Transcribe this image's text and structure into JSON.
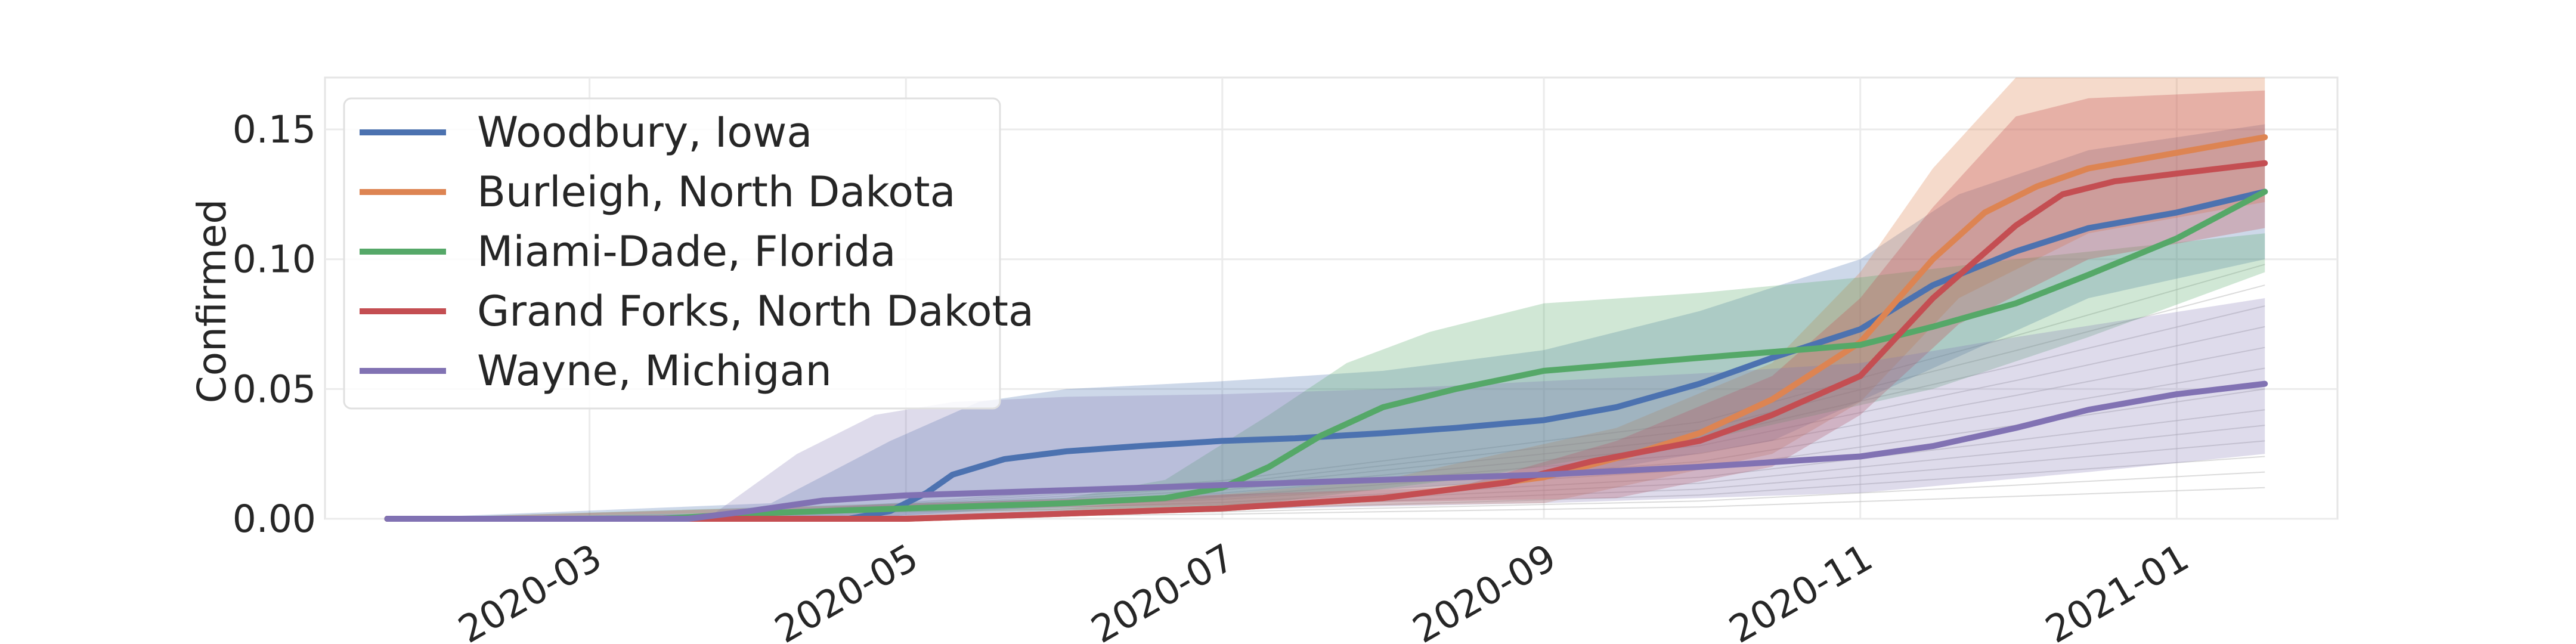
{
  "chart_data": {
    "type": "line",
    "title": "",
    "xlabel": "",
    "ylabel": "Confirmed",
    "xlim": [
      "2020-01-10",
      "2021-02-01"
    ],
    "ylim": [
      0,
      0.17
    ],
    "x_ticks": [
      "2020-03",
      "2020-05",
      "2020-07",
      "2020-09",
      "2020-11",
      "2021-01"
    ],
    "y_ticks": [
      "0.00",
      "0.05",
      "0.10",
      "0.15"
    ],
    "grid": true,
    "legend_position": "upper-left",
    "colors": {
      "blue": "#4c72b0",
      "orange": "#dd8452",
      "green": "#55a868",
      "red": "#c44e52",
      "purple": "#8172b3",
      "background_lines": "#bdbdbd"
    },
    "series": [
      {
        "name": "Woodbury, Iowa",
        "color": "#4c72b0",
        "points": [
          [
            "2020-01-22",
            0
          ],
          [
            "2020-04-20",
            0
          ],
          [
            "2020-04-28",
            0.003
          ],
          [
            "2020-05-05",
            0.01
          ],
          [
            "2020-05-10",
            0.017
          ],
          [
            "2020-05-20",
            0.023
          ],
          [
            "2020-06-01",
            0.026
          ],
          [
            "2020-06-15",
            0.028
          ],
          [
            "2020-07-01",
            0.03
          ],
          [
            "2020-07-15",
            0.031
          ],
          [
            "2020-08-01",
            0.033
          ],
          [
            "2020-08-15",
            0.035
          ],
          [
            "2020-09-01",
            0.038
          ],
          [
            "2020-09-15",
            0.043
          ],
          [
            "2020-10-01",
            0.052
          ],
          [
            "2020-10-15",
            0.062
          ],
          [
            "2020-11-01",
            0.073
          ],
          [
            "2020-11-15",
            0.09
          ],
          [
            "2020-12-01",
            0.103
          ],
          [
            "2020-12-15",
            0.112
          ],
          [
            "2021-01-01",
            0.118
          ],
          [
            "2021-01-18",
            0.126
          ]
        ],
        "band": {
          "color": "#4c72b0",
          "opacity": 0.28,
          "lower": [
            [
              "2020-01-22",
              0
            ],
            [
              "2020-04-20",
              0
            ],
            [
              "2020-05-15",
              0.003
            ],
            [
              "2020-07-01",
              0.008
            ],
            [
              "2020-09-01",
              0.015
            ],
            [
              "2020-10-15",
              0.03
            ],
            [
              "2020-11-15",
              0.058
            ],
            [
              "2020-12-15",
              0.085
            ],
            [
              "2021-01-18",
              0.1
            ]
          ],
          "upper": [
            [
              "2020-01-22",
              0
            ],
            [
              "2020-04-05",
              0.006
            ],
            [
              "2020-04-28",
              0.03
            ],
            [
              "2020-05-15",
              0.045
            ],
            [
              "2020-06-01",
              0.05
            ],
            [
              "2020-07-01",
              0.053
            ],
            [
              "2020-08-01",
              0.057
            ],
            [
              "2020-09-01",
              0.065
            ],
            [
              "2020-10-01",
              0.08
            ],
            [
              "2020-11-01",
              0.1
            ],
            [
              "2020-11-20",
              0.125
            ],
            [
              "2020-12-15",
              0.142
            ],
            [
              "2021-01-18",
              0.152
            ]
          ]
        }
      },
      {
        "name": "Burleigh, North Dakota",
        "color": "#dd8452",
        "points": [
          [
            "2020-01-22",
            0
          ],
          [
            "2020-05-01",
            0
          ],
          [
            "2020-06-01",
            0.002
          ],
          [
            "2020-07-01",
            0.004
          ],
          [
            "2020-08-01",
            0.008
          ],
          [
            "2020-09-01",
            0.016
          ],
          [
            "2020-09-20",
            0.026
          ],
          [
            "2020-10-01",
            0.033
          ],
          [
            "2020-10-15",
            0.046
          ],
          [
            "2020-11-01",
            0.068
          ],
          [
            "2020-11-15",
            0.1
          ],
          [
            "2020-11-25",
            0.118
          ],
          [
            "2020-12-05",
            0.128
          ],
          [
            "2020-12-15",
            0.135
          ],
          [
            "2021-01-01",
            0.141
          ],
          [
            "2021-01-18",
            0.147
          ]
        ],
        "band": {
          "color": "#dd8452",
          "opacity": 0.3,
          "lower": [
            [
              "2020-01-22",
              0
            ],
            [
              "2020-09-01",
              0.006
            ],
            [
              "2020-10-15",
              0.025
            ],
            [
              "2020-11-01",
              0.045
            ],
            [
              "2020-11-20",
              0.085
            ],
            [
              "2020-12-15",
              0.11
            ],
            [
              "2021-01-18",
              0.122
            ]
          ],
          "upper": [
            [
              "2020-01-22",
              0
            ],
            [
              "2020-03-25",
              0.001
            ],
            [
              "2020-06-01",
              0.004
            ],
            [
              "2020-08-01",
              0.015
            ],
            [
              "2020-09-15",
              0.035
            ],
            [
              "2020-10-15",
              0.06
            ],
            [
              "2020-11-01",
              0.095
            ],
            [
              "2020-11-15",
              0.135
            ],
            [
              "2020-12-01",
              0.17
            ],
            [
              "2021-01-18",
              0.17
            ]
          ]
        }
      },
      {
        "name": "Miami-Dade, Florida",
        "color": "#55a868",
        "points": [
          [
            "2020-01-22",
            0
          ],
          [
            "2020-03-15",
            0
          ],
          [
            "2020-04-01",
            0.002
          ],
          [
            "2020-05-01",
            0.004
          ],
          [
            "2020-06-01",
            0.006
          ],
          [
            "2020-06-20",
            0.008
          ],
          [
            "2020-07-01",
            0.012
          ],
          [
            "2020-07-10",
            0.02
          ],
          [
            "2020-07-20",
            0.032
          ],
          [
            "2020-08-01",
            0.043
          ],
          [
            "2020-08-15",
            0.05
          ],
          [
            "2020-09-01",
            0.057
          ],
          [
            "2020-10-01",
            0.062
          ],
          [
            "2020-11-01",
            0.067
          ],
          [
            "2020-11-15",
            0.074
          ],
          [
            "2020-12-01",
            0.083
          ],
          [
            "2020-12-15",
            0.094
          ],
          [
            "2021-01-01",
            0.108
          ],
          [
            "2021-01-18",
            0.126
          ]
        ],
        "band": {
          "color": "#55a868",
          "opacity": 0.28,
          "lower": [
            [
              "2020-01-22",
              0
            ],
            [
              "2020-07-01",
              0.004
            ],
            [
              "2020-08-15",
              0.015
            ],
            [
              "2020-10-01",
              0.03
            ],
            [
              "2020-11-15",
              0.05
            ],
            [
              "2020-12-15",
              0.07
            ],
            [
              "2021-01-18",
              0.095
            ]
          ],
          "upper": [
            [
              "2020-01-22",
              0
            ],
            [
              "2020-06-01",
              0.008
            ],
            [
              "2020-06-20",
              0.015
            ],
            [
              "2020-07-10",
              0.04
            ],
            [
              "2020-07-25",
              0.06
            ],
            [
              "2020-08-10",
              0.072
            ],
            [
              "2020-09-01",
              0.083
            ],
            [
              "2020-10-01",
              0.087
            ],
            [
              "2020-11-01",
              0.093
            ],
            [
              "2020-12-01",
              0.1
            ],
            [
              "2021-01-18",
              0.11
            ]
          ]
        }
      },
      {
        "name": "Grand Forks, North Dakota",
        "color": "#c44e52",
        "points": [
          [
            "2020-01-22",
            0
          ],
          [
            "2020-05-01",
            0
          ],
          [
            "2020-06-01",
            0.002
          ],
          [
            "2020-07-01",
            0.004
          ],
          [
            "2020-08-01",
            0.008
          ],
          [
            "2020-08-25",
            0.014
          ],
          [
            "2020-09-10",
            0.022
          ],
          [
            "2020-10-01",
            0.03
          ],
          [
            "2020-10-15",
            0.04
          ],
          [
            "2020-11-01",
            0.055
          ],
          [
            "2020-11-15",
            0.085
          ],
          [
            "2020-12-01",
            0.113
          ],
          [
            "2020-12-10",
            0.125
          ],
          [
            "2020-12-20",
            0.13
          ],
          [
            "2021-01-01",
            0.133
          ],
          [
            "2021-01-18",
            0.137
          ]
        ],
        "band": {
          "color": "#c44e52",
          "opacity": 0.3,
          "lower": [
            [
              "2020-01-22",
              0
            ],
            [
              "2020-09-15",
              0.008
            ],
            [
              "2020-10-15",
              0.02
            ],
            [
              "2020-11-01",
              0.04
            ],
            [
              "2020-11-20",
              0.075
            ],
            [
              "2020-12-15",
              0.1
            ],
            [
              "2021-01-18",
              0.112
            ]
          ],
          "upper": [
            [
              "2020-01-22",
              0
            ],
            [
              "2020-08-15",
              0.012
            ],
            [
              "2020-09-15",
              0.03
            ],
            [
              "2020-10-15",
              0.055
            ],
            [
              "2020-11-01",
              0.085
            ],
            [
              "2020-11-15",
              0.12
            ],
            [
              "2020-12-01",
              0.155
            ],
            [
              "2020-12-15",
              0.162
            ],
            [
              "2021-01-18",
              0.165
            ]
          ]
        }
      },
      {
        "name": "Wayne, Michigan",
        "color": "#8172b3",
        "points": [
          [
            "2020-01-22",
            0
          ],
          [
            "2020-03-20",
            0
          ],
          [
            "2020-04-01",
            0.003
          ],
          [
            "2020-04-15",
            0.007
          ],
          [
            "2020-05-01",
            0.009
          ],
          [
            "2020-06-01",
            0.011
          ],
          [
            "2020-07-01",
            0.013
          ],
          [
            "2020-08-01",
            0.015
          ],
          [
            "2020-09-01",
            0.017
          ],
          [
            "2020-10-01",
            0.02
          ],
          [
            "2020-11-01",
            0.024
          ],
          [
            "2020-11-15",
            0.028
          ],
          [
            "2020-12-01",
            0.035
          ],
          [
            "2020-12-15",
            0.042
          ],
          [
            "2021-01-01",
            0.048
          ],
          [
            "2021-01-18",
            0.052
          ]
        ],
        "band": {
          "color": "#8172b3",
          "opacity": 0.26,
          "lower": [
            [
              "2020-01-22",
              0
            ],
            [
              "2020-05-01",
              0.001
            ],
            [
              "2020-09-01",
              0.006
            ],
            [
              "2020-11-01",
              0.01
            ],
            [
              "2020-12-15",
              0.018
            ],
            [
              "2021-01-18",
              0.025
            ]
          ],
          "upper": [
            [
              "2020-01-22",
              0
            ],
            [
              "2020-03-25",
              0.002
            ],
            [
              "2020-04-10",
              0.025
            ],
            [
              "2020-04-25",
              0.04
            ],
            [
              "2020-05-10",
              0.045
            ],
            [
              "2020-06-01",
              0.047
            ],
            [
              "2020-07-01",
              0.048
            ],
            [
              "2020-08-01",
              0.05
            ],
            [
              "2020-09-01",
              0.053
            ],
            [
              "2020-10-01",
              0.056
            ],
            [
              "2020-11-01",
              0.06
            ],
            [
              "2020-12-01",
              0.07
            ],
            [
              "2021-01-18",
              0.085
            ]
          ]
        }
      }
    ],
    "background_lines": [
      {
        "end": 0.012
      },
      {
        "end": 0.018
      },
      {
        "end": 0.024
      },
      {
        "end": 0.03
      },
      {
        "end": 0.036
      },
      {
        "end": 0.042
      },
      {
        "end": 0.05
      },
      {
        "end": 0.058
      },
      {
        "end": 0.066
      },
      {
        "end": 0.074
      },
      {
        "end": 0.082
      },
      {
        "end": 0.09
      },
      {
        "end": 0.098
      }
    ]
  }
}
